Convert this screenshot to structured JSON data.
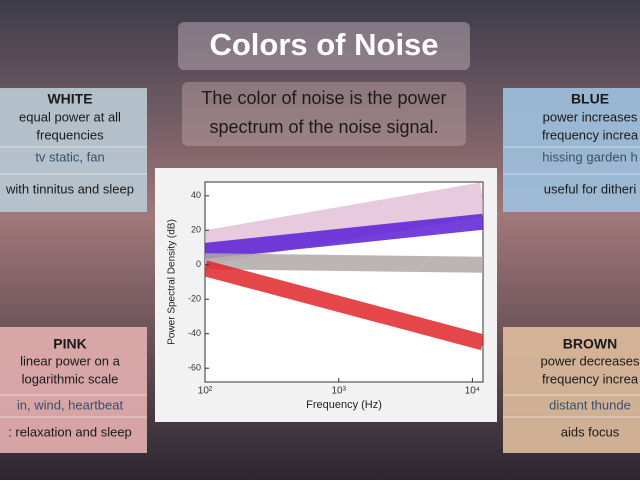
{
  "title": "Colors of Noise",
  "subtitle": [
    "The color of noise is the power",
    "spectrum of the noise signal."
  ],
  "cards": [
    {
      "heading": "WHITE",
      "lines": [
        "equal power at all",
        "frequencies",
        "tv static, fan",
        "with tinnitus and sleep"
      ]
    },
    {
      "heading": "BLUE",
      "lines": [
        "power increases",
        "frequency increa",
        "hissing garden h",
        "useful for ditheri"
      ]
    },
    {
      "heading": "PINK",
      "lines": [
        "linear power on a",
        "logarithmic scale",
        "in, wind, heartbeat",
        ": relaxation and sleep"
      ]
    },
    {
      "heading": "BROWN",
      "lines": [
        "power decreases",
        "frequency increa",
        "distant thunde",
        "aids focus"
      ]
    }
  ],
  "chart_data": {
    "type": "line",
    "x_label": "Frequency (Hz)",
    "y_label": "Power Spectral Density (dB)",
    "x": [
      100,
      12000
    ],
    "series": [
      {
        "color": "#d9a6c8",
        "values": [
          10,
          38
        ]
      },
      {
        "color": "#5a1fd6",
        "values": [
          8,
          25
        ]
      },
      {
        "color": "#b0a8a8",
        "values": [
          2,
          0
        ]
      },
      {
        "color": "#e0262a",
        "values": [
          -2,
          -45
        ]
      }
    ],
    "log_x": true,
    "xlim": [
      100,
      12000
    ],
    "ylim": [
      -68,
      48
    ],
    "xticks": [
      {
        "value": 100,
        "label": "10²"
      },
      {
        "value": 1000,
        "label": "10³"
      },
      {
        "value": 10000,
        "label": "10⁴"
      }
    ],
    "yticks": [
      -60,
      -40,
      -20,
      0,
      20,
      40
    ]
  }
}
